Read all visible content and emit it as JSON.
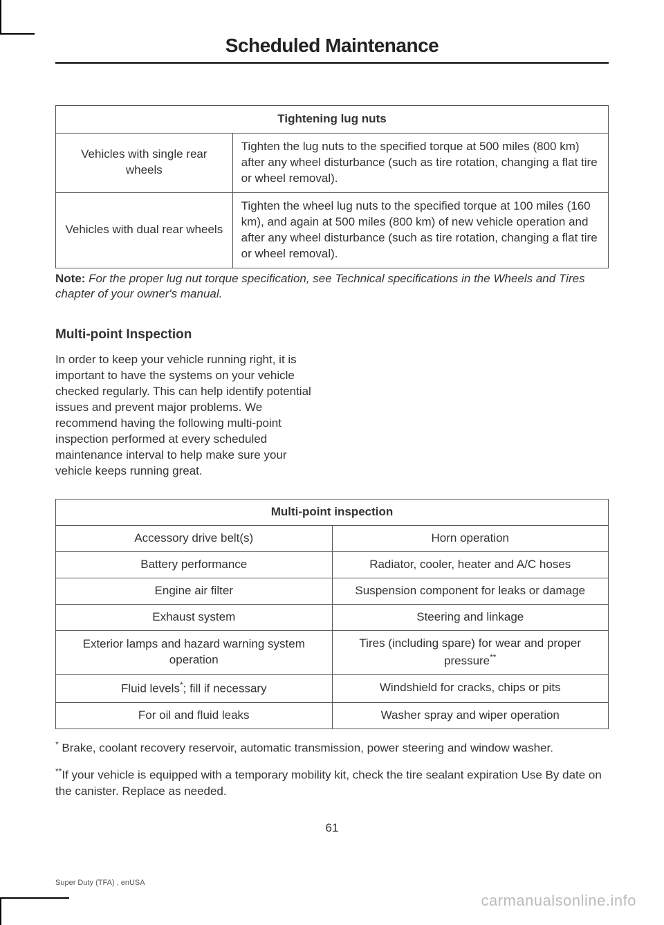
{
  "page_title": "Scheduled Maintenance",
  "lug_table": {
    "header": "Tightening lug nuts",
    "rows": [
      {
        "label": "Vehicles with single rear wheels",
        "text": "Tighten the lug nuts to the specified torque at 500 miles (800 km) after any wheel disturbance (such as tire rotation, changing a flat tire or wheel removal)."
      },
      {
        "label": "Vehicles with dual rear wheels",
        "text": "Tighten the wheel lug nuts to the specified torque at 100 miles (160 km), and again at 500 miles (800 km) of new vehicle operation and after any wheel disturbance (such as tire rotation, changing a flat tire or wheel removal)."
      }
    ]
  },
  "note_label": "Note:",
  "note_text": " For the proper lug nut torque specification, see Technical specifications in the Wheels and Tires chapter of your owner's manual.",
  "section_heading": "Multi-point Inspection",
  "body_para": "In order to keep your vehicle running right, it is important to have the systems on your vehicle checked regularly. This can help identify potential issues and prevent major problems. We recommend having the following multi-point inspection performed at every scheduled maintenance interval to help make sure your vehicle keeps running great.",
  "mp_table": {
    "header": "Multi-point inspection",
    "rows": [
      [
        "Accessory drive belt(s)",
        "Horn operation"
      ],
      [
        "Battery performance",
        "Radiator, cooler, heater and A/C hoses"
      ],
      [
        "Engine air filter",
        "Suspension component for leaks or damage"
      ],
      [
        "Exhaust system",
        "Steering and linkage"
      ],
      [
        "Exterior lamps and hazard warning system operation",
        "Tires (including spare) for wear and proper pressure"
      ],
      [
        "Fluid levels",
        "Windshield for cracks, chips or pits"
      ],
      [
        "For oil and fluid leaks",
        "Washer spray and wiper operation"
      ]
    ],
    "fluid_suffix": "; fill if necessary"
  },
  "footnote1_mark": "*",
  "footnote1_text": " Brake, coolant recovery reservoir, automatic transmission, power steering and window washer.",
  "footnote2_mark": "**",
  "footnote2_text": "If your vehicle is equipped with a temporary mobility kit, check the tire sealant expiration Use By date on the canister. Replace as needed.",
  "page_number": "61",
  "footer_left": "Super Duty (TFA) , enUSA",
  "footer_right": "carmanualsonline.info"
}
